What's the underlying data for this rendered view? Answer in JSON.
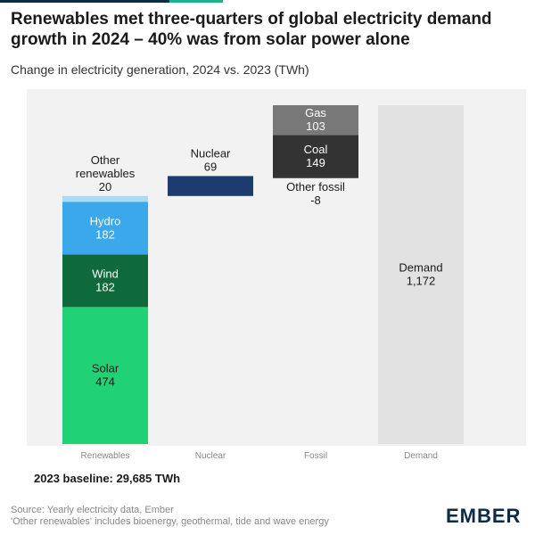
{
  "title": "Renewables met three-quarters of global electricity demand growth in 2024 – 40% was from solar power alone",
  "subtitle": "Change in electricity generation, 2024 vs. 2023 (TWh)",
  "baseline_note": "2023 baseline: 29,685 TWh",
  "source_lines": [
    "Source: Yearly electricity data, Ember",
    "'Other renewables' includes bioenergy, geothermal, tide and wave energy"
  ],
  "logo_text": "EMBER",
  "colors": {
    "solar": "#21d175",
    "wind": "#0e6a3b",
    "hydro": "#3aa8ea",
    "other_renewables": "#a8dbf4",
    "nuclear": "#1c3b6e",
    "coal": "#333333",
    "gas": "#787878",
    "other_fossil": "#cfcfcf",
    "demand": "#e2e2e2",
    "panel": "#f2f2f2",
    "accent": "#1db28a"
  },
  "chart_data": {
    "type": "bar",
    "subtype": "waterfall",
    "categories": [
      "Renewables",
      "Nuclear",
      "Fossil",
      "Demand"
    ],
    "ylim": [
      0,
      1172
    ],
    "grid": false,
    "segments": [
      {
        "category": "Renewables",
        "label": "Solar",
        "value": 474,
        "display": "474",
        "start": 0,
        "color_key": "solar",
        "label_pos": "inside"
      },
      {
        "category": "Renewables",
        "label": "Wind",
        "value": 182,
        "display": "182",
        "start": 474,
        "color_key": "wind",
        "label_pos": "inside"
      },
      {
        "category": "Renewables",
        "label": "Hydro",
        "value": 182,
        "display": "182",
        "start": 656,
        "color_key": "hydro",
        "label_pos": "inside"
      },
      {
        "category": "Renewables",
        "label": "Other renewables",
        "value": 20,
        "display": "20",
        "start": 838,
        "color_key": "other_renewables",
        "label_pos": "above"
      },
      {
        "category": "Nuclear",
        "label": "Nuclear",
        "value": 69,
        "display": "69",
        "start": 858,
        "color_key": "nuclear",
        "label_pos": "above"
      },
      {
        "category": "Fossil",
        "label": "Other fossil",
        "value": -8,
        "display": "-8",
        "start": 927,
        "color_key": "other_fossil",
        "label_pos": "below"
      },
      {
        "category": "Fossil",
        "label": "Coal",
        "value": 149,
        "display": "149",
        "start": 920,
        "color_key": "coal",
        "label_pos": "inside"
      },
      {
        "category": "Fossil",
        "label": "Gas",
        "value": 103,
        "display": "103",
        "start": 1069,
        "color_key": "gas",
        "label_pos": "inside"
      },
      {
        "category": "Demand",
        "label": "Demand",
        "value": 1172,
        "display": "1,172",
        "start": 0,
        "color_key": "demand",
        "label_pos": "inside"
      }
    ]
  }
}
